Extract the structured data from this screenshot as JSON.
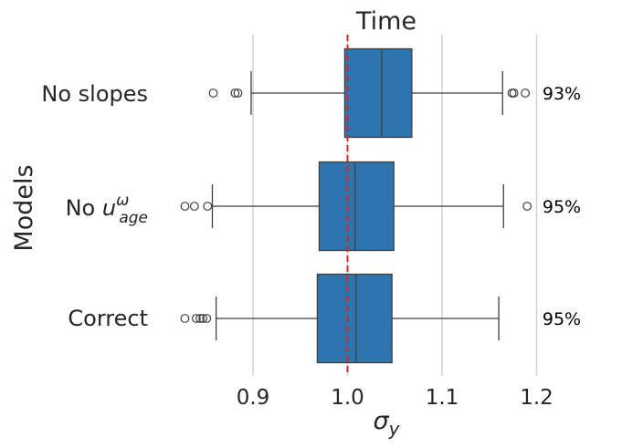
{
  "chart_data": {
    "type": "boxplot",
    "title": "Time",
    "xlabel": "σ_y",
    "ylabel": "Models",
    "xlim": [
      0.81,
      1.24
    ],
    "xticks": [
      "0.9",
      "1.0",
      "1.1",
      "1.2"
    ],
    "reference_line": {
      "x": 1.0,
      "style": "dashed",
      "color": "#d62728"
    },
    "grid": "vertical",
    "box_color": "#2e75b0",
    "categories": [
      "No slopes",
      "No u_age^ω",
      "Correct"
    ],
    "boxes": [
      {
        "label": "No slopes",
        "whisker_low": 0.898,
        "q1": 0.997,
        "median": 1.036,
        "q3": 1.068,
        "whisker_high": 1.164,
        "outliers": [
          0.858,
          0.881,
          0.884,
          1.174,
          1.176,
          1.188
        ],
        "coverage": "93%"
      },
      {
        "label": "No u_age^ω",
        "whisker_low": 0.857,
        "q1": 0.97,
        "median": 1.008,
        "q3": 1.049,
        "whisker_high": 1.165,
        "outliers": [
          0.828,
          0.838,
          0.852,
          1.19
        ],
        "coverage": "95%"
      },
      {
        "label": "Correct",
        "whisker_low": 0.861,
        "q1": 0.968,
        "median": 1.009,
        "q3": 1.047,
        "whisker_high": 1.16,
        "outliers": [
          0.828,
          0.84,
          0.844,
          0.847,
          0.851
        ],
        "coverage": "95%"
      }
    ]
  }
}
